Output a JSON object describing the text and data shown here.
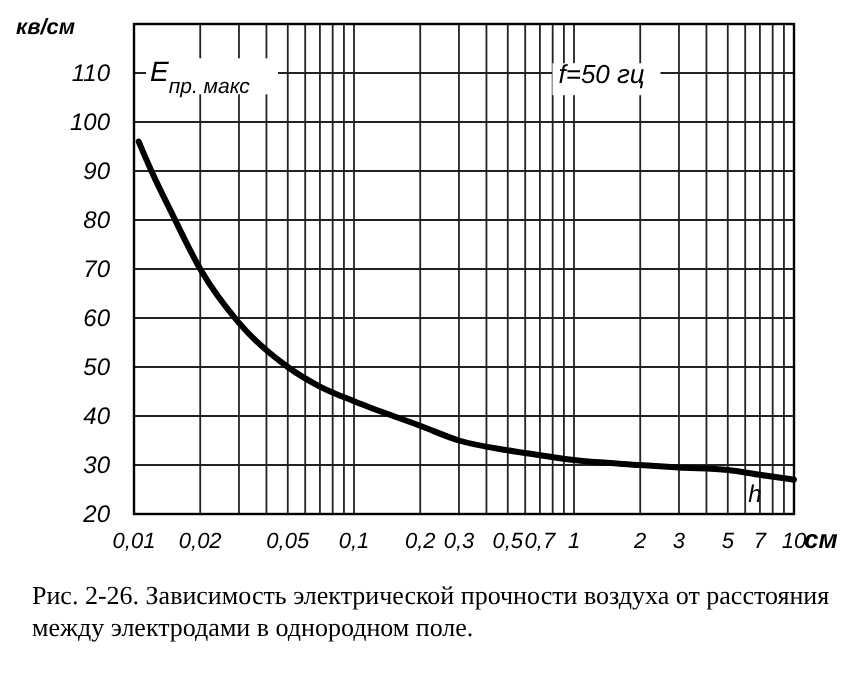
{
  "chart_data": {
    "type": "line",
    "xlabel": "см",
    "ylabel": "кв/см",
    "log": "x",
    "x": [
      0.0105,
      0.012,
      0.015,
      0.02,
      0.03,
      0.05,
      0.07,
      0.1,
      0.2,
      0.3,
      0.5,
      0.7,
      1,
      2,
      3,
      5,
      7,
      10
    ],
    "series": [
      {
        "color": "#000000",
        "values": [
          96,
          90,
          81,
          70,
          59,
          50,
          46,
          43,
          38,
          35,
          33,
          32,
          31,
          30,
          29.5,
          29,
          28,
          27
        ]
      }
    ],
    "xlim": [
      0.01,
      10
    ],
    "ylim": [
      20,
      120
    ],
    "xticks": [
      {
        "value": 0.01,
        "label": "0,01"
      },
      {
        "value": 0.02,
        "label": "0,02"
      },
      {
        "value": 0.03,
        "label": null
      },
      {
        "value": 0.04,
        "label": null
      },
      {
        "value": 0.05,
        "label": "0,05"
      },
      {
        "value": 0.06,
        "label": null
      },
      {
        "value": 0.07,
        "label": null
      },
      {
        "value": 0.08,
        "label": null
      },
      {
        "value": 0.09,
        "label": null
      },
      {
        "value": 0.1,
        "label": "0,1"
      },
      {
        "value": 0.2,
        "label": "0,2"
      },
      {
        "value": 0.3,
        "label": "0,3"
      },
      {
        "value": 0.4,
        "label": null
      },
      {
        "value": 0.5,
        "label": "0,5"
      },
      {
        "value": 0.6,
        "label": null
      },
      {
        "value": 0.7,
        "label": "0,7"
      },
      {
        "value": 0.8,
        "label": null
      },
      {
        "value": 0.9,
        "label": null
      },
      1,
      2,
      3,
      {
        "value": 4,
        "label": null
      },
      5,
      {
        "value": 6,
        "label": null
      },
      7,
      {
        "value": 8,
        "label": null
      },
      {
        "value": 9,
        "label": null
      },
      10
    ],
    "yticks": [
      20,
      30,
      40,
      50,
      60,
      70,
      80,
      90,
      100,
      110,
      {
        "value": 120,
        "label": null
      }
    ],
    "grid": true,
    "marker": "none",
    "line_style": "solid",
    "annotations": [
      "E$_{пр. макс}$",
      "f=50 гц",
      "h",
      "Рис. 2-26. Зависимость электрической прочности воздуха от расстояния между электродами в однородном поле."
    ]
  }
}
